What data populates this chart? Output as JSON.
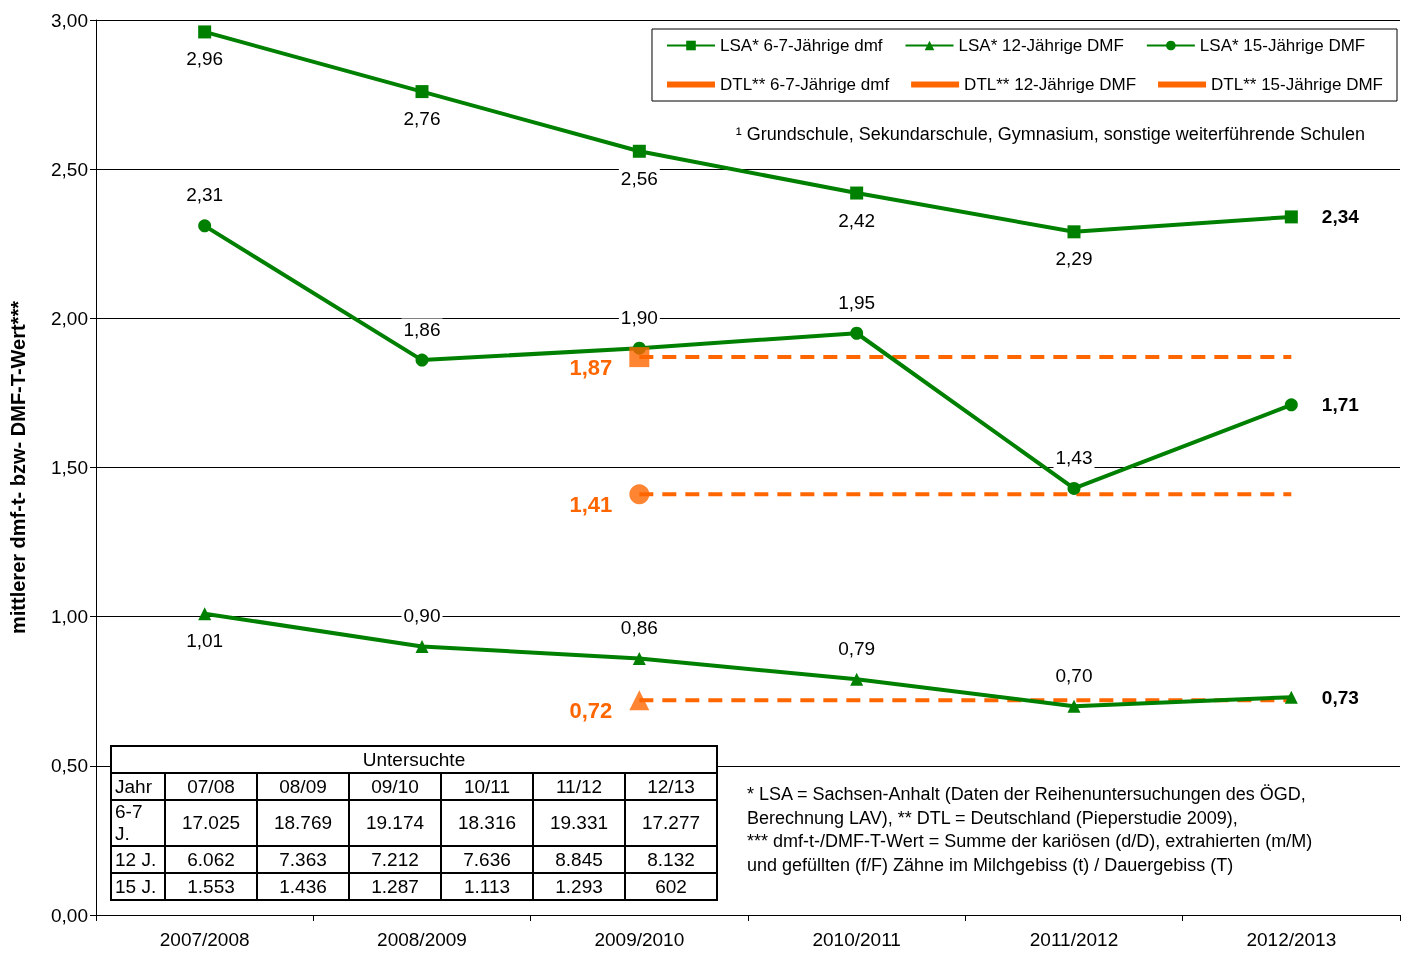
{
  "chart_data": {
    "type": "line",
    "ylabel": "mittlerer dmf-t- bzw- DMF-T-Wert***",
    "categories": [
      "2007/2008",
      "2008/2009",
      "2009/2010",
      "2010/2011",
      "2011/2012",
      "2012/2013"
    ],
    "series": [
      {
        "name": "LSA* 6-7-Jährige dmf",
        "color": "#008000",
        "marker": "square",
        "line_style": "solid",
        "values": [
          2.96,
          2.76,
          2.56,
          2.42,
          2.29,
          2.34
        ],
        "value_labels": [
          "2,96",
          "2,76",
          "2,56",
          "2,42",
          "2,29",
          "2,34"
        ]
      },
      {
        "name": "LSA* 12-Jährige DMF",
        "color": "#008000",
        "marker": "triangle",
        "line_style": "solid",
        "values": [
          1.01,
          0.9,
          0.86,
          0.79,
          0.7,
          0.73
        ],
        "value_labels": [
          "1,01",
          "0,90",
          "0,86",
          "0,79",
          "0,70",
          "0,73"
        ]
      },
      {
        "name": "LSA* 15-Jährige DMF",
        "color": "#008000",
        "marker": "circle",
        "line_style": "solid",
        "values": [
          2.31,
          1.86,
          1.9,
          1.95,
          1.43,
          1.71
        ],
        "value_labels": [
          "2,31",
          "1,86",
          "1,90",
          "1,95",
          "1,43",
          "1,71"
        ]
      },
      {
        "name": "DTL** 6-7-Jährige dmf",
        "color": "#ff6600",
        "marker": "none",
        "line_style": "dashed",
        "values": [
          null,
          null,
          1.87,
          1.87,
          1.87,
          1.87
        ],
        "value_labels": [
          null,
          null,
          "1,87",
          null,
          null,
          null
        ]
      },
      {
        "name": "DTL** 12-Jährige DMF",
        "color": "#ff6600",
        "marker": "none",
        "line_style": "dashed",
        "values": [
          null,
          null,
          0.72,
          0.72,
          0.72,
          0.72
        ],
        "value_labels": [
          null,
          null,
          "0,72",
          null,
          null,
          null
        ]
      },
      {
        "name": "DTL** 15-Jährige DMF",
        "color": "#ff6600",
        "marker": "none",
        "line_style": "dashed",
        "values": [
          null,
          null,
          1.41,
          1.41,
          1.41,
          1.41
        ],
        "value_labels": [
          null,
          null,
          "1,41",
          null,
          null,
          null
        ]
      },
      {
        "type": "scatter",
        "color": "#ff6600",
        "marker": "square",
        "x": [
          "2009/2010"
        ],
        "values": [
          1.87
        ]
      },
      {
        "type": "scatter",
        "color": "#ff6600",
        "marker": "triangle",
        "x": [
          "2009/2010"
        ],
        "values": [
          0.72
        ]
      },
      {
        "type": "scatter",
        "color": "#ff6600",
        "marker": "circle",
        "x": [
          "2009/2010"
        ],
        "values": [
          1.41
        ]
      }
    ],
    "ylim": [
      0,
      3
    ],
    "yticks": [
      {
        "value": 0,
        "label": "0,00"
      },
      {
        "value": 0.5,
        "label": "0,50"
      },
      {
        "value": 1,
        "label": "1,00"
      },
      {
        "value": 1.5,
        "label": "1,50"
      },
      {
        "value": 2,
        "label": "2,00"
      },
      {
        "value": 2.5,
        "label": "2,50"
      },
      {
        "value": 3,
        "label": "3,00"
      }
    ],
    "grid": "y",
    "legend": "top right",
    "annotations": [
      "¹ Grundschule, Sekundarschule, Gymnasium, sonstige weiterführende Schulen",
      "* LSA = Sachsen-Anhalt (Daten der Reihenuntersuchungen des ÖGD,",
      "Berechnung LAV), ** DTL = Deutschland (Pieperstudie 2009),",
      "*** dmf-t-/DMF-T-Wert = Summe der kariösen (d/D), extrahierten (m/M)",
      "und gefüllten (f/F) Zähne im Milchgebiss (t) / Dauergebiss (T)",
      "Untersuchte",
      "Jahr",
      "07/08",
      "08/09",
      "09/10",
      "10/11",
      "11/12",
      "12/13",
      "6-7 J.",
      "17.025",
      "18.769",
      "19.174",
      "18.316",
      "19.331",
      "17.277",
      "12 J.",
      "6.062",
      "7.363",
      "7.212",
      "7.636",
      "8.845",
      "8.132",
      "15 J.",
      "1.553",
      "1.436",
      "1.287",
      "1.113",
      "1.293",
      "602"
    ]
  }
}
